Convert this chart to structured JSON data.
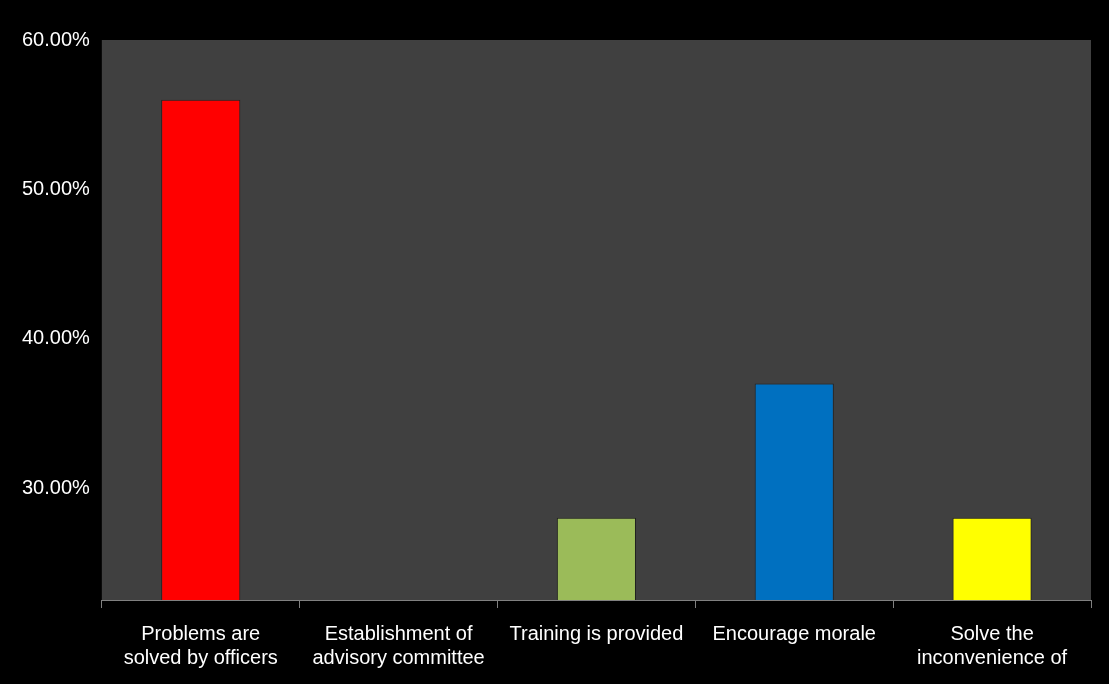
{
  "chart_data": {
    "type": "bar",
    "categories": [
      "Problems are solved by officers",
      "Establishment of advisory committee",
      "Training is provided",
      "Encourage morale",
      "Solve the inconvenience of"
    ],
    "values": [
      56,
      null,
      28,
      37,
      28
    ],
    "colors": [
      "#ff0000",
      "#00b050",
      "#9bbb59",
      "#0070c0",
      "#ffff00"
    ],
    "ylim": [
      22.5,
      60
    ],
    "yticks": [
      {
        "value": 30,
        "label": "30.00%"
      },
      {
        "value": 40,
        "label": "40.00%"
      },
      {
        "value": 50,
        "label": "50.00%"
      },
      {
        "value": 60,
        "label": "60.00%"
      }
    ],
    "grid": false,
    "legend": false
  }
}
